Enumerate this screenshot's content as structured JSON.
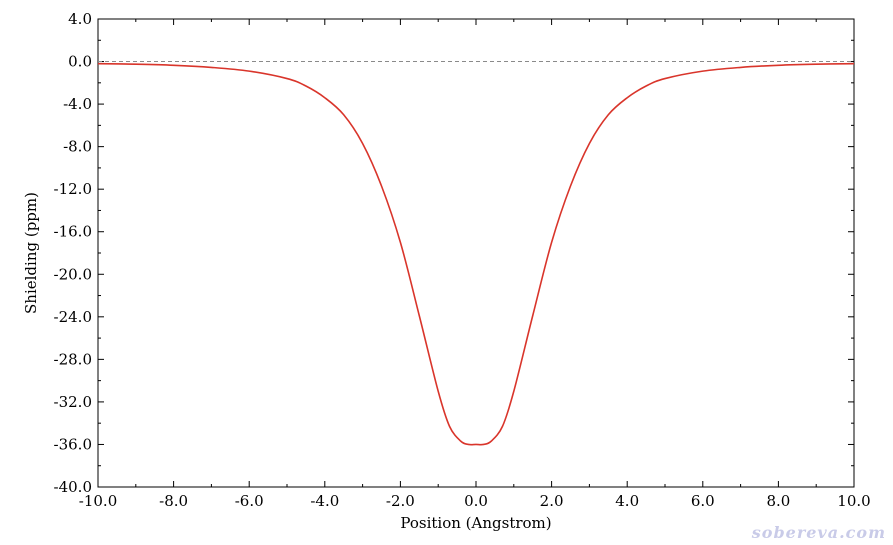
{
  "chart_data": {
    "type": "line",
    "title": "",
    "xlabel": "Position (Angstrom)",
    "ylabel": "Shielding (ppm)",
    "xlim": [
      -10.0,
      10.0
    ],
    "ylim": [
      -40.0,
      4.0
    ],
    "x_ticks": [
      "-10.0",
      "-8.0",
      "-6.0",
      "-4.0",
      "-2.0",
      "0.0",
      "2.0",
      "4.0",
      "6.0",
      "8.0",
      "10.0"
    ],
    "y_ticks": [
      "4.0",
      "0.0",
      "-4.0",
      "-8.0",
      "-12.0",
      "-16.0",
      "-20.0",
      "-24.0",
      "-28.0",
      "-32.0",
      "-36.0",
      "-40.0"
    ],
    "grid": false,
    "zero_line": "dashed",
    "series": [
      {
        "color": "#d9352b",
        "x": [
          -10.0,
          -9.0,
          -8.0,
          -7.0,
          -6.0,
          -5.0,
          -4.5,
          -4.0,
          -3.5,
          -3.0,
          -2.5,
          -2.0,
          -1.5,
          -1.0,
          -0.7,
          -0.4,
          -0.2,
          0.0,
          0.2,
          0.4,
          0.7,
          1.0,
          1.5,
          2.0,
          2.5,
          3.0,
          3.5,
          4.0,
          4.5,
          5.0,
          6.0,
          7.0,
          8.0,
          9.0,
          10.0
        ],
        "y": [
          -0.2,
          -0.25,
          -0.35,
          -0.55,
          -0.9,
          -1.6,
          -2.3,
          -3.4,
          -5.0,
          -7.7,
          -11.7,
          -17.0,
          -23.9,
          -31.0,
          -34.3,
          -35.7,
          -36.0,
          -36.0,
          -36.0,
          -35.7,
          -34.3,
          -31.0,
          -23.9,
          -17.0,
          -11.7,
          -7.7,
          -5.0,
          -3.4,
          -2.3,
          -1.6,
          -0.9,
          -0.55,
          -0.35,
          -0.25,
          -0.2
        ]
      }
    ]
  },
  "watermark": "sobereva.com"
}
